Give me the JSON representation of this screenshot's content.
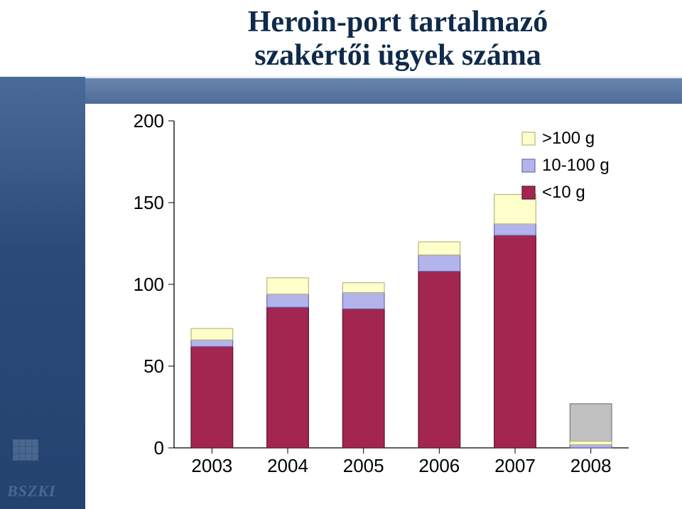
{
  "title_line1": "Heroin-port tartalmazó",
  "title_line2": "szakértői ügyek száma",
  "footer_logo_text": "BSZKI",
  "chart": {
    "type": "stacked-bar",
    "background_color": "#ffffff",
    "axis_color": "#000000",
    "ylim": [
      0,
      200
    ],
    "ytick_step": 50,
    "yticks": [
      0,
      50,
      100,
      150,
      200
    ],
    "categories": [
      "2003",
      "2004",
      "2005",
      "2006",
      "2007",
      "2008"
    ],
    "series": [
      {
        "name": "<10 g",
        "color": "#a32650",
        "border": "#5a1530"
      },
      {
        "name": "10-100 g",
        "color": "#b4b4ec",
        "border": "#6a6ab0"
      },
      {
        "name": ">100 g",
        "color": "#ffffcc",
        "border": "#b8b878"
      }
    ],
    "legend_order": [
      ">100 g",
      "10-100 g",
      "<10 g"
    ],
    "data": {
      "<10 g": [
        62,
        86,
        85,
        108,
        130,
        0
      ],
      "10-100 g": [
        4,
        8,
        10,
        10,
        7,
        2
      ],
      ">100 g": [
        7,
        10,
        6,
        8,
        18,
        2
      ]
    },
    "other_column": {
      "category": "2008",
      "value": 27,
      "color": "#c0c0c0",
      "border": "#7a7a7a"
    },
    "bar_width_ratio": 0.55,
    "label_fontsize": 26,
    "legend_fontsize": 24,
    "legend_position": "top-right-inside"
  },
  "colors": {
    "page_bg": "#ffffff",
    "left_gradient_top": "#4a6b99",
    "left_gradient_bottom": "#24436f",
    "title_band_top": "#5c7ca8",
    "title_band_bottom": "#3f5f8f",
    "title_text": "#0f2a4a",
    "footer_text": "#6b86aa"
  }
}
